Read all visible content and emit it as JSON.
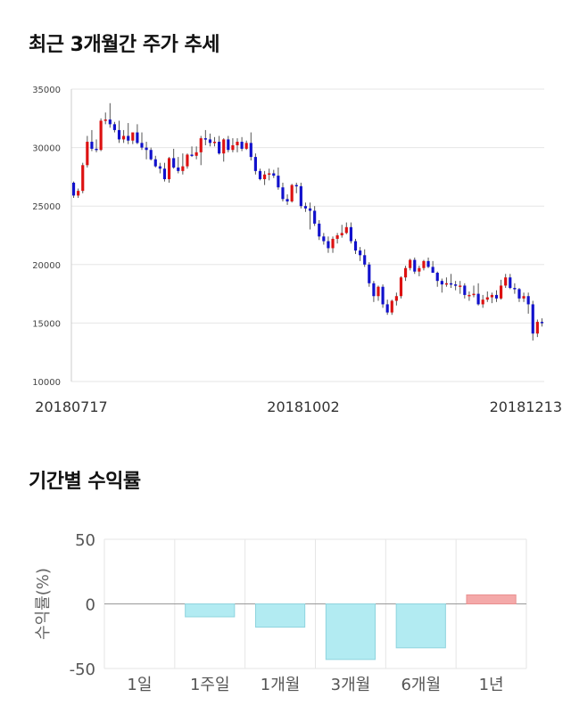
{
  "section1": {
    "title": "최근 3개월간 주가 추세"
  },
  "section2": {
    "title": "기간별 수익률"
  },
  "chart_data": [
    {
      "type": "candlestick",
      "title": "최근 3개월간 주가 추세",
      "ylim": [
        10000,
        35000
      ],
      "yticks": [
        10000,
        15000,
        20000,
        25000,
        30000,
        35000
      ],
      "xtick_labels": [
        "20180717",
        "20181002",
        "20181213"
      ],
      "colors": {
        "up": "#dd1111",
        "down": "#1111cc",
        "wick": "#555555",
        "grid": "#e6e6e6"
      },
      "ohlc": [
        [
          27000,
          27100,
          25700,
          25900
        ],
        [
          25900,
          26500,
          25700,
          26300
        ],
        [
          26300,
          28700,
          26100,
          28500
        ],
        [
          28500,
          31000,
          28300,
          30500
        ],
        [
          30500,
          31500,
          29700,
          29900
        ],
        [
          29900,
          30700,
          29600,
          29800
        ],
        [
          29800,
          32500,
          29700,
          32300
        ],
        [
          32300,
          33000,
          32000,
          32400
        ],
        [
          32400,
          33800,
          31700,
          32000
        ],
        [
          32000,
          32200,
          31300,
          31500
        ],
        [
          31500,
          32300,
          30400,
          30700
        ],
        [
          30700,
          31500,
          30400,
          31000
        ],
        [
          31000,
          32100,
          30300,
          30600
        ],
        [
          30600,
          31200,
          30300,
          31300
        ],
        [
          31300,
          32000,
          30300,
          30400
        ],
        [
          30400,
          31300,
          29800,
          30000
        ],
        [
          30000,
          30500,
          29000,
          29800
        ],
        [
          29800,
          30000,
          28900,
          29000
        ],
        [
          29000,
          29300,
          28300,
          28400
        ],
        [
          28400,
          28700,
          27800,
          28200
        ],
        [
          28200,
          28700,
          27100,
          27300
        ],
        [
          27300,
          29200,
          27000,
          29100
        ],
        [
          29100,
          29900,
          28200,
          28300
        ],
        [
          28300,
          29200,
          27800,
          28000
        ],
        [
          28000,
          29500,
          27700,
          28400
        ],
        [
          28400,
          29500,
          28200,
          29400
        ],
        [
          29400,
          30100,
          29200,
          29300
        ],
        [
          29300,
          30100,
          29000,
          29600
        ],
        [
          29600,
          31000,
          28500,
          30800
        ],
        [
          30800,
          31500,
          30200,
          30700
        ],
        [
          30700,
          31200,
          30100,
          30400
        ],
        [
          30400,
          30900,
          30100,
          30500
        ],
        [
          30500,
          31000,
          29400,
          29500
        ],
        [
          29500,
          30800,
          28800,
          30700
        ],
        [
          30700,
          31000,
          29600,
          29800
        ],
        [
          29800,
          30800,
          29600,
          30200
        ],
        [
          30200,
          30800,
          29600,
          30500
        ],
        [
          30500,
          30900,
          29700,
          29900
        ],
        [
          29900,
          30600,
          29800,
          30400
        ],
        [
          30400,
          31300,
          28900,
          29200
        ],
        [
          29200,
          29500,
          27700,
          28000
        ],
        [
          28000,
          28200,
          27200,
          27300
        ],
        [
          27300,
          28000,
          26800,
          27700
        ],
        [
          27700,
          28200,
          27200,
          27800
        ],
        [
          27800,
          28100,
          27400,
          27600
        ],
        [
          27600,
          28300,
          26400,
          26600
        ],
        [
          26600,
          27000,
          25400,
          25600
        ],
        [
          25600,
          26000,
          25100,
          25400
        ],
        [
          25400,
          26900,
          25300,
          26800
        ],
        [
          26800,
          27000,
          26100,
          26700
        ],
        [
          26700,
          27000,
          24800,
          25000
        ],
        [
          25000,
          25300,
          24500,
          24800
        ],
        [
          24800,
          25300,
          23000,
          24600
        ],
        [
          24600,
          25000,
          23300,
          23500
        ],
        [
          23500,
          23800,
          22100,
          22400
        ],
        [
          22400,
          22700,
          21700,
          22000
        ],
        [
          22000,
          22400,
          21000,
          21400
        ],
        [
          21400,
          22400,
          21000,
          22200
        ],
        [
          22200,
          22700,
          21800,
          22500
        ],
        [
          22500,
          23400,
          22300,
          22700
        ],
        [
          22700,
          23600,
          22600,
          23200
        ],
        [
          23200,
          23600,
          21800,
          22000
        ],
        [
          22000,
          22200,
          20900,
          21200
        ],
        [
          21200,
          21500,
          20300,
          20800
        ],
        [
          20800,
          21300,
          19800,
          20000
        ],
        [
          20000,
          20200,
          18100,
          18400
        ],
        [
          18400,
          18600,
          16800,
          17300
        ],
        [
          17300,
          18200,
          16900,
          18100
        ],
        [
          18100,
          18300,
          16300,
          16600
        ],
        [
          16600,
          17000,
          15700,
          15900
        ],
        [
          15900,
          17000,
          15700,
          16900
        ],
        [
          16900,
          17600,
          16500,
          17300
        ],
        [
          17300,
          19000,
          17100,
          18900
        ],
        [
          18900,
          19900,
          18600,
          19700
        ],
        [
          19700,
          20500,
          19500,
          20400
        ],
        [
          20400,
          20600,
          19200,
          19400
        ],
        [
          19400,
          19900,
          19000,
          19700
        ],
        [
          19700,
          20400,
          19500,
          20300
        ],
        [
          20300,
          20600,
          19700,
          19800
        ],
        [
          19800,
          20300,
          19300,
          19300
        ],
        [
          19300,
          19400,
          18100,
          18600
        ],
        [
          18600,
          18800,
          17600,
          18300
        ],
        [
          18300,
          18900,
          18100,
          18400
        ],
        [
          18400,
          19200,
          18000,
          18300
        ],
        [
          18300,
          18600,
          17800,
          18200
        ],
        [
          18200,
          18600,
          17500,
          18200
        ],
        [
          18200,
          18400,
          17100,
          17400
        ],
        [
          17400,
          17700,
          16900,
          17400
        ],
        [
          17400,
          18200,
          17200,
          17500
        ],
        [
          17500,
          18400,
          16500,
          16600
        ],
        [
          16600,
          17400,
          16300,
          17000
        ],
        [
          17000,
          17700,
          16800,
          17200
        ],
        [
          17200,
          17600,
          16700,
          17400
        ],
        [
          17400,
          17800,
          16800,
          17100
        ],
        [
          17100,
          18700,
          17000,
          18200
        ],
        [
          18200,
          19200,
          18000,
          18900
        ],
        [
          18900,
          19200,
          17900,
          18000
        ],
        [
          18000,
          18400,
          17500,
          17900
        ],
        [
          17900,
          18000,
          16800,
          17100
        ],
        [
          17100,
          17600,
          16800,
          17300
        ],
        [
          17300,
          17600,
          15800,
          16600
        ],
        [
          16600,
          16900,
          13500,
          14100
        ],
        [
          14100,
          15300,
          13800,
          15100
        ],
        [
          15100,
          15400,
          14700,
          15000
        ]
      ]
    },
    {
      "type": "bar",
      "title": "기간별 수익률",
      "ylabel": "수익률(%)",
      "ylim": [
        -50,
        50
      ],
      "yticks": [
        -50,
        0,
        50
      ],
      "categories": [
        "1일",
        "1주일",
        "1개월",
        "3개월",
        "6개월",
        "1년"
      ],
      "values": [
        0,
        -10,
        -18,
        -43,
        -34,
        7
      ],
      "colors": {
        "positive": "#f4a9a9",
        "negative": "#b2ebf2",
        "positive_edge": "#e88f8f",
        "negative_edge": "#8fd4de",
        "grid": "#e6e6e6",
        "zero": "#999999"
      }
    }
  ]
}
